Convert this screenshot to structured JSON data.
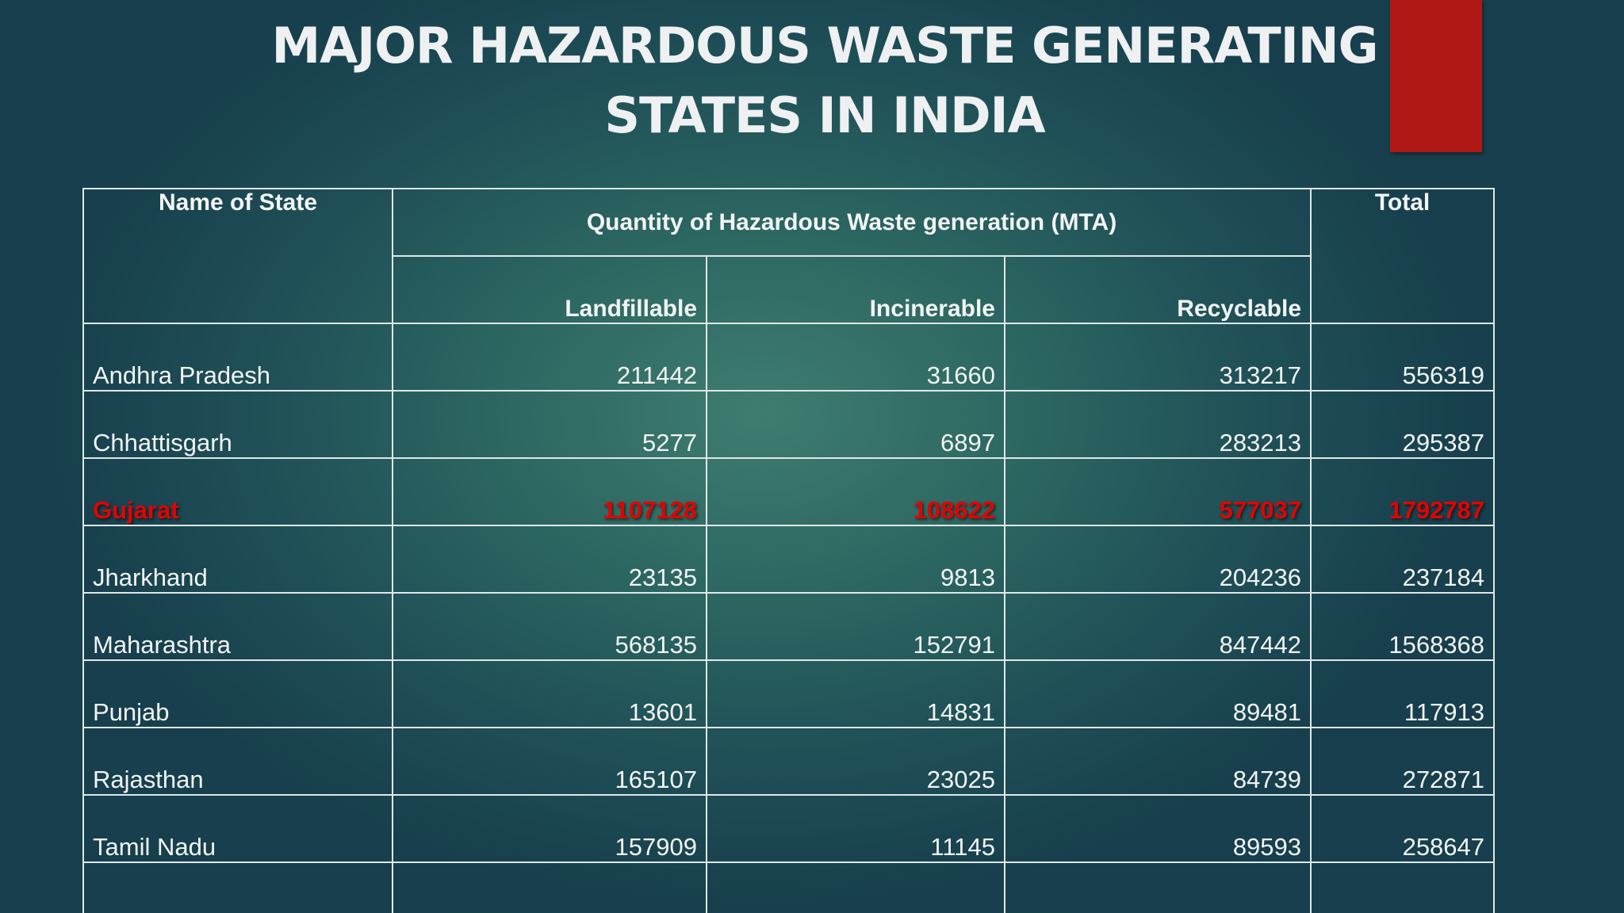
{
  "slide": {
    "title_line1": "MAJOR HAZARDOUS  WASTE GENERATING",
    "title_line2": "STATES  IN INDIA",
    "accent_color": "#b01815",
    "highlight_color": "#e60000"
  },
  "table": {
    "headers": {
      "state": "Name of State",
      "group": "Quantity of Hazardous Waste generation (MTA)",
      "landfillable": "Landfillable",
      "incinerable": "Incinerable",
      "recyclable": "Recyclable",
      "total": "Total"
    },
    "rows": [
      {
        "state": "Andhra Pradesh",
        "landfillable": "211442",
        "incinerable": "31660",
        "recyclable": "313217",
        "total": "556319",
        "highlighted": false
      },
      {
        "state": "Chhattisgarh",
        "landfillable": "5277",
        "incinerable": "6897",
        "recyclable": "283213",
        "total": "295387",
        "highlighted": false
      },
      {
        "state": "Gujarat",
        "landfillable": "1107128",
        "incinerable": "108622",
        "recyclable": "577037",
        "total": "1792787",
        "highlighted": true
      },
      {
        "state": "Jharkhand",
        "landfillable": "23135",
        "incinerable": "9813",
        "recyclable": "204236",
        "total": "237184",
        "highlighted": false
      },
      {
        "state": "Maharashtra",
        "landfillable": "568135",
        "incinerable": "152791",
        "recyclable": "847442",
        "total": "1568368",
        "highlighted": false
      },
      {
        "state": "Punjab",
        "landfillable": "13601",
        "incinerable": "14831",
        "recyclable": "89481",
        "total": "117913",
        "highlighted": false
      },
      {
        "state": "Rajasthan",
        "landfillable": "165107",
        "incinerable": "23025",
        "recyclable": "84739",
        "total": "272871",
        "highlighted": false
      },
      {
        "state": "Tamil Nadu",
        "landfillable": "157909",
        "incinerable": "11145",
        "recyclable": "89593",
        "total": "258647",
        "highlighted": false
      },
      {
        "state": "",
        "landfillable": "",
        "incinerable": "",
        "recyclable": "",
        "total": "",
        "highlighted": false,
        "note": "row cut off at bottom edge"
      }
    ]
  }
}
